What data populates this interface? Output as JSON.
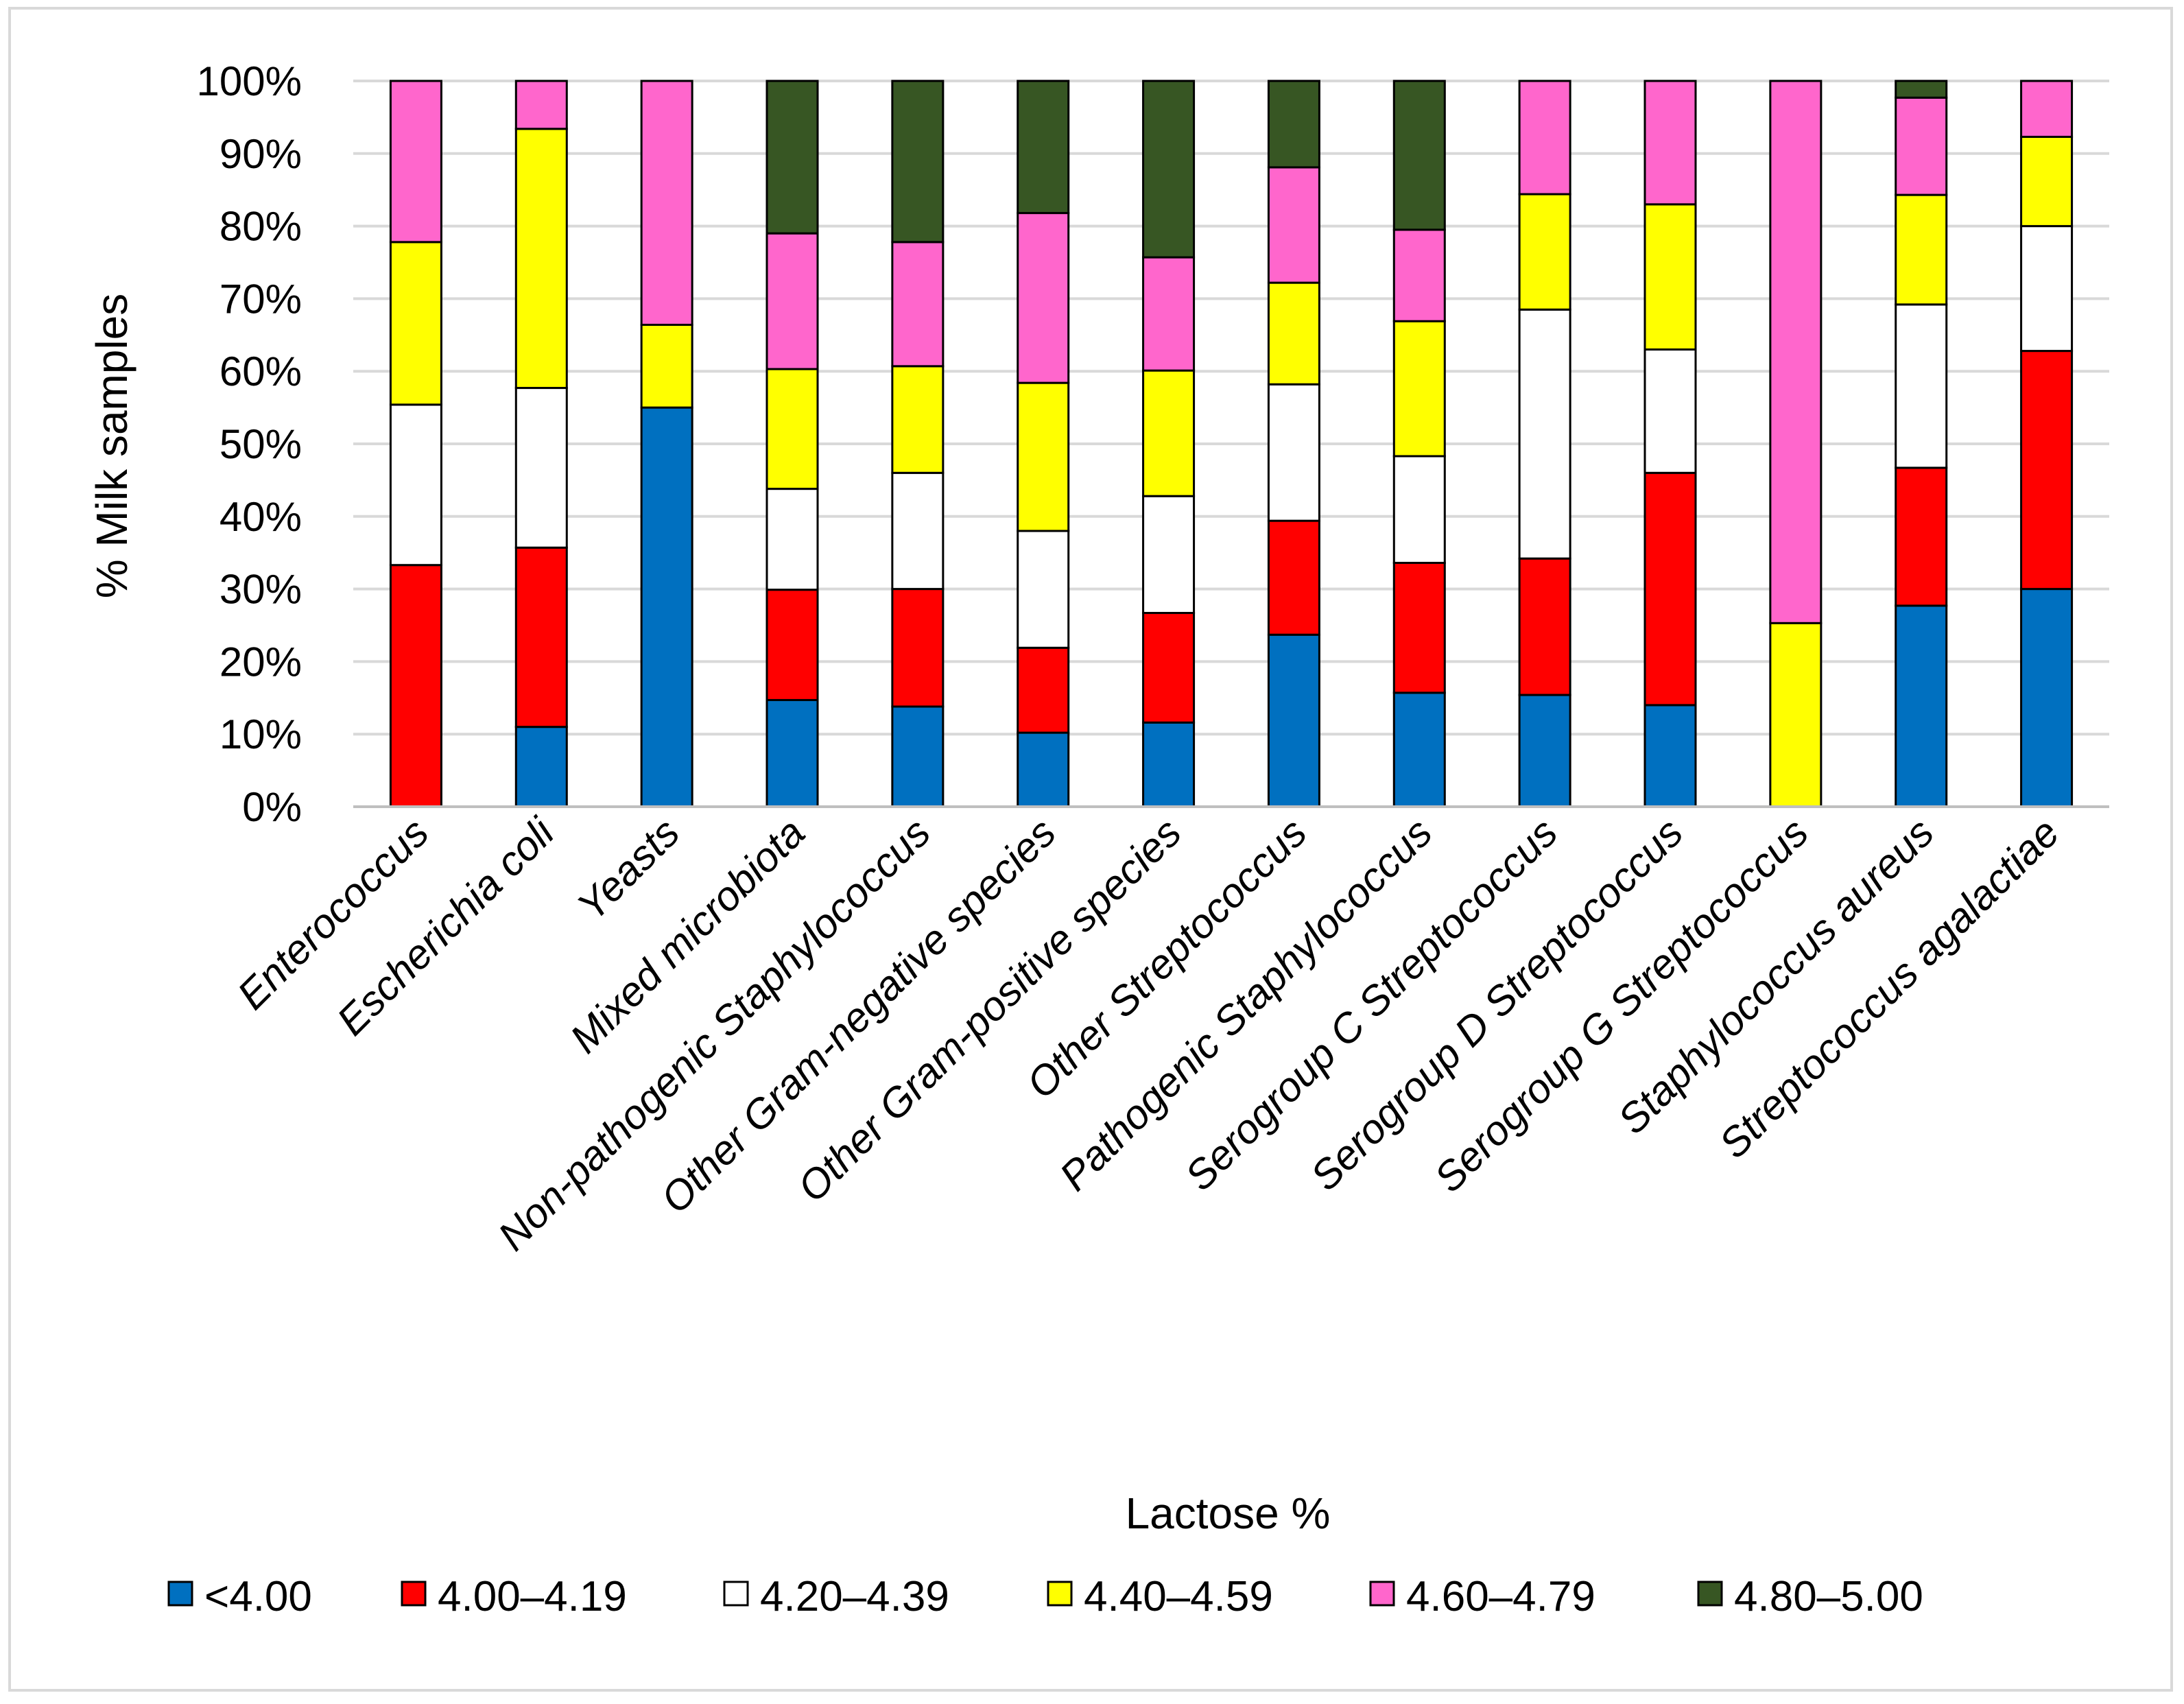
{
  "chart_data": {
    "type": "bar",
    "stacked": true,
    "ylabel": "% Milk samples",
    "xlabel": "Lactose %",
    "ylim": [
      0,
      100
    ],
    "yticks": [
      "0%",
      "10%",
      "20%",
      "30%",
      "40%",
      "50%",
      "60%",
      "70%",
      "80%",
      "90%",
      "100%"
    ],
    "legend_position": "bottom",
    "categories": [
      "Enterococcus",
      "Escherichia coli",
      "Yeasts",
      "Mixed microbiota",
      "Non-pathogenic Staphylococcus",
      "Other Gram-negative species",
      "Other Gram-positive species",
      "Other Streptococcus",
      "Pathogenic Staphylococcus",
      "Serogroup C Streptococcus",
      "Serogroup D Streptococcus",
      "Serogroup G Streptococcus",
      "Staphylococcus aureus",
      "Streptococcus agalactiae"
    ],
    "series": [
      {
        "name": "<4.00",
        "color": "#0070C0",
        "values": [
          0,
          11,
          55,
          14.7,
          13.8,
          10.2,
          11.6,
          23.7,
          15.7,
          15.4,
          14,
          0,
          27.7,
          30
        ]
      },
      {
        "name": "4.00–4.19",
        "color": "#FF0000",
        "values": [
          33.3,
          24.7,
          0,
          15.2,
          16.2,
          11.7,
          15.1,
          15.7,
          17.9,
          18.8,
          32,
          0,
          19,
          32.8
        ]
      },
      {
        "name": "4.20–4.39",
        "color": "#FFFFFF",
        "values": [
          22.1,
          22,
          0,
          13.9,
          16,
          16.1,
          16.1,
          18.8,
          14.7,
          34.3,
          17,
          0,
          22.5,
          17.2
        ]
      },
      {
        "name": "4.40–4.59",
        "color": "#FFFF00",
        "values": [
          22.4,
          35.7,
          11.4,
          16.5,
          14.7,
          20.4,
          17.3,
          14,
          18.6,
          15.9,
          20,
          25.3,
          15.1,
          12.3
        ]
      },
      {
        "name": "4.60–4.79",
        "color": "#FF66CC",
        "values": [
          22.2,
          6.6,
          33.6,
          18.7,
          17.1,
          23.4,
          15.6,
          15.9,
          12.6,
          15.6,
          17,
          74.7,
          13.4,
          7.7
        ]
      },
      {
        "name": "4.80–5.00",
        "color": "#375623",
        "values": [
          0,
          0,
          0,
          21,
          22.2,
          18.2,
          24.3,
          11.9,
          20.5,
          0,
          0,
          0,
          2.3,
          0
        ]
      }
    ]
  }
}
